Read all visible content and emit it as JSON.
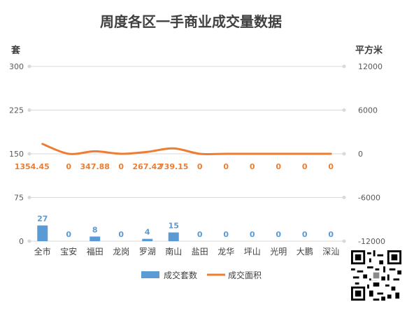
{
  "chart_data": {
    "type": "bar+line",
    "title": "周度各区一手商业成交量数据",
    "y_left_label": "套",
    "y_right_label": "平方米",
    "y_left_range": [
      0,
      300
    ],
    "y_left_ticks": [
      "0",
      "75",
      "150",
      "225",
      "300"
    ],
    "y_right_range": [
      -12000,
      12000
    ],
    "y_right_ticks": [
      "-12000",
      "-6000",
      "0",
      "6000",
      "12000"
    ],
    "categories": [
      "全市",
      "宝安",
      "福田",
      "龙岗",
      "罗湖",
      "南山",
      "盐田",
      "龙华",
      "坪山",
      "光明",
      "大鹏",
      "深汕"
    ],
    "series": [
      {
        "name": "成交套数",
        "type": "bar",
        "axis": "left",
        "color": "#5b9bd5",
        "values": [
          27,
          0,
          8,
          0,
          4,
          15,
          0,
          0,
          0,
          0,
          0,
          0
        ],
        "labels": [
          "27",
          "0",
          "8",
          "0",
          "4",
          "15",
          "0",
          "0",
          "0",
          "0",
          "0",
          "0"
        ]
      },
      {
        "name": "成交面积",
        "type": "line",
        "axis": "right",
        "color": "#ed7d31",
        "values": [
          1354.45,
          0,
          347.88,
          0,
          267.42,
          739.15,
          0,
          0,
          0,
          0,
          0,
          0
        ],
        "labels": [
          "1354.45",
          "0",
          "347.88",
          "0",
          "267.42",
          "739.15",
          "0",
          "0",
          "0",
          "0",
          "0",
          "0"
        ]
      }
    ],
    "grid": true,
    "legend_position": "bottom"
  }
}
